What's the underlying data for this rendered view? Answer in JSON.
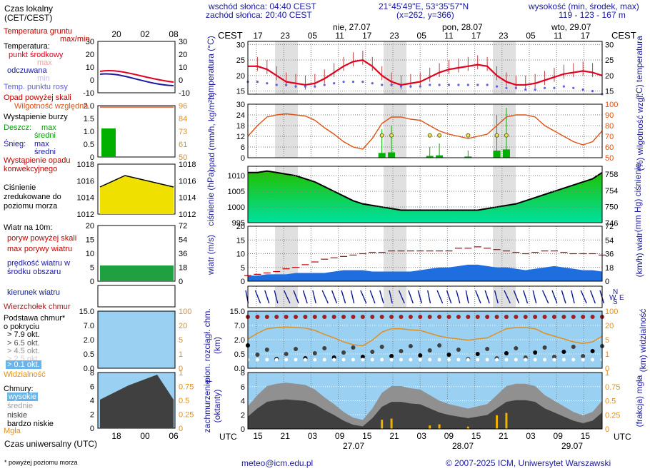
{
  "header": {
    "sunrise": "wschód słońca: 04:40 CEST",
    "sunset": "zachód słońca: 20:40 CEST",
    "coords": "21°45'49\"E, 53°35'57\"N",
    "grid": "(x=262, y=366)",
    "height_label": "wysokość (min, środek, max)",
    "height_values": "119 - 123 - 167 m",
    "local_time_label": "Czas lokalny (CET/CEST)",
    "cest": "CEST",
    "days": [
      "nie, 27.07",
      "pon, 28.07",
      "wto, 29.07"
    ],
    "top_hours": [
      "17",
      "23",
      "05",
      "11",
      "17",
      "23",
      "05",
      "11",
      "17",
      "23",
      "05",
      "11",
      "17"
    ],
    "legend_top_hours": [
      "20",
      "02",
      "08"
    ]
  },
  "footer": {
    "utc": "UTC",
    "bottom_hours": [
      "15",
      "21",
      "03",
      "09",
      "15",
      "21",
      "03",
      "09",
      "15",
      "21",
      "03",
      "09",
      "15"
    ],
    "bottom_dates": [
      "27.07",
      "28.07",
      "29.07"
    ],
    "legend_bottom_hours": [
      "18",
      "00",
      "06"
    ],
    "universal_time_label": "Czas uniwersalny (UTC)",
    "footnote": "* powyżej poziomu morza",
    "email": "meteo@icm.edu.pl",
    "copyright": "© 2007-2025 ICM, Uniwersytet Warszawski"
  },
  "legend": {
    "temp": {
      "soil": "Temperatura gruntu",
      "soil_sub": "max/min",
      "temperature": "Temperatura:",
      "mid": "punkt środkowy",
      "max": "max",
      "min": "min",
      "feels": "odczuwana",
      "dew": "Temp. punktu rosy",
      "ticks": [
        "30",
        "20",
        "10",
        "0",
        "-10"
      ]
    },
    "precip": {
      "over_scale": "Opad powyżej skali",
      "humidity": "Wilgotność względna",
      "storm": "Wystąpienie burzy",
      "rain": "Deszcz:",
      "rain_max": "max",
      "rain_mid": "średni",
      "snow": "Śnieg:",
      "snow_max": "max",
      "snow_mid": "średni",
      "convective": "Wystąpienie opadu konwekcyjnego",
      "ticks_left": [
        "2.0",
        "1.5",
        "1.0",
        "0.5",
        "0"
      ],
      "ticks_right": [
        "96",
        "84",
        "73",
        "61",
        "50"
      ]
    },
    "pressure": {
      "label": "Ciśnienie zredukowane do poziomu morza",
      "ticks": [
        "1018",
        "1016",
        "1014",
        "1012"
      ]
    },
    "wind": {
      "label": "Wiatr na 10m:",
      "gust_over": "poryw powyżej skali",
      "max_gust": "max porywy wiatru",
      "speed": "prędkość wiatru w środku obszaru",
      "ticks_left": [
        "20",
        "15",
        "10",
        "5",
        "0"
      ],
      "ticks_right": [
        "72",
        "54",
        "36",
        "18",
        "0"
      ]
    },
    "direction": {
      "label": "kierunek wiatru"
    },
    "cloudbase": {
      "top": "Wierzchołek chmur",
      "base": "Podstawa chmur* o pokryciu",
      "c79": "> 7.9 okt.",
      "c65": "> 6.5 okt.",
      "c45": "> 4.5 okt.",
      "c25": "> 2.5 okt.",
      "c01": "> 0.1 okt.",
      "vis": "Widzialność",
      "ticks_left": [
        "15.0",
        "7.0",
        "2.0",
        "0.5",
        "0.0"
      ],
      "ticks_right": [
        "100",
        "20",
        "5",
        "1",
        "0"
      ]
    },
    "clouds": {
      "label": "Chmury:",
      "high": "wysokie",
      "mid": "średnie",
      "low": "niskie",
      "vlow": "bardzo niskie",
      "fog": "Mgła",
      "ticks_left": [
        "8",
        "6",
        "4",
        "2",
        "0"
      ],
      "ticks_right": [
        "1",
        "0.75",
        "0.5",
        "0.25",
        "0"
      ]
    }
  },
  "axes": {
    "temp_left": "temperatura (°C)",
    "temp_right": "(°C) temperatura",
    "precip_left": "opad (mm/h, kg/m²h)",
    "precip_right": "(%) wilgotność wzgl.",
    "press_left": "ciśnienie (hPa)",
    "press_right": "(mm Hg) ciśnienie",
    "wind_left": "wiatr (m/s)",
    "wind_right": "(km/h) wiatr",
    "cb_left": "pion. rozciągł. chm. (km)",
    "cb_right": "(km) widzialność",
    "cl_left": "zachmurzenie (oktanty)",
    "cl_right": "(frakcja) mgła",
    "compass": "N S W E",
    "temp_ticks": [
      "30",
      "25",
      "20",
      "15"
    ],
    "precip_ticks_left": [
      "30",
      "24",
      "18",
      "12",
      "6",
      "0"
    ],
    "precip_ticks_right": [
      "100",
      "90",
      "80",
      "70",
      "60",
      "50"
    ],
    "press_ticks_left": [
      "1010",
      "1005",
      "1000",
      "995"
    ],
    "press_ticks_right": [
      "758",
      "754",
      "750",
      "746"
    ],
    "wind_ticks_left": [
      "20",
      "15",
      "10",
      "5",
      "0"
    ],
    "wind_ticks_right": [
      "72",
      "54",
      "36",
      "18",
      "0"
    ],
    "cb_ticks_left": [
      "15.0",
      "7.0",
      "2.0",
      "0.5",
      "0.0"
    ],
    "cb_ticks_right": [
      "100",
      "20",
      "5",
      "1",
      "0"
    ],
    "cl_ticks_left": [
      "8",
      "6",
      "4",
      "2",
      "0"
    ],
    "cl_ticks_right": [
      "1",
      "0.75",
      "0.5",
      "0.25",
      "0"
    ]
  },
  "colors": {
    "temp": "#e00020",
    "dew": "#6060e0",
    "humidity": "#e05010",
    "rain": "#00b000",
    "pressure_line": "#000000",
    "wind": "#1e6ee0",
    "gust": "#c00000",
    "direction": "#0a1890",
    "cloudtop": "#a02020",
    "vis": "#e09020",
    "fog": "#f0b000",
    "sky": "#9ad0f2"
  },
  "chart_data": {
    "type": "line",
    "temperature": [
      23,
      23,
      22,
      20,
      18,
      17.5,
      17,
      17.5,
      19,
      21,
      23,
      24.5,
      25,
      23,
      20,
      18,
      17,
      17.5,
      18,
      19.5,
      21,
      22,
      22.5,
      23,
      23.5,
      23,
      20,
      18,
      17,
      17,
      17.5,
      18.5,
      19.5,
      20.5,
      21,
      21.5,
      21,
      20
    ],
    "dew_point": [
      18,
      18,
      17.5,
      17,
      17,
      16.5,
      16.5,
      16.5,
      17,
      17.5,
      18,
      18,
      18,
      17.5,
      17,
      17,
      16.5,
      16.5,
      16.5,
      17,
      17,
      17,
      17,
      17,
      17,
      17,
      16.5,
      16,
      16,
      15.5,
      15.5,
      16,
      16,
      16.5,
      16,
      15.5,
      15,
      14
    ],
    "humidity": [
      70,
      80,
      88,
      90,
      91,
      90,
      89,
      85,
      78,
      72,
      65,
      60,
      58,
      68,
      82,
      88,
      88,
      86,
      85,
      80,
      75,
      72,
      70,
      68,
      70,
      72,
      80,
      88,
      90,
      90,
      88,
      80,
      75,
      70,
      65,
      62,
      65,
      75
    ],
    "pressure": [
      1011,
      1011,
      1011.5,
      1011,
      1010.5,
      1010,
      1009,
      1008,
      1006.5,
      1005,
      1003.5,
      1002,
      1001,
      1000.5,
      1000,
      999.5,
      999,
      999,
      999,
      999,
      999,
      999,
      999,
      999,
      999,
      999.5,
      1000,
      1000.5,
      1001,
      1002,
      1003,
      1004,
      1005,
      1006,
      1007,
      1008,
      1009,
      1011
    ],
    "wind_speed": [
      2,
      2,
      2.5,
      2.5,
      2.5,
      3,
      3,
      3,
      3,
      3.5,
      4,
      4,
      4,
      3.5,
      3.5,
      3.5,
      3.5,
      3.5,
      4,
      4.5,
      5,
      5,
      5.5,
      6,
      6,
      5.5,
      5,
      5,
      4.5,
      4,
      4.5,
      5,
      5.5,
      5,
      4.5,
      4,
      4,
      3.5
    ],
    "wind_gust": [
      2,
      2.5,
      3,
      3.5,
      4.5,
      5,
      6,
      7,
      8,
      8.5,
      9,
      9.5,
      10,
      10.5,
      10.5,
      11,
      11,
      11,
      11,
      11,
      11,
      11,
      12,
      12,
      12.5,
      12,
      11.5,
      11,
      10.5,
      10,
      10.5,
      11,
      11,
      10.5,
      10,
      10,
      10,
      9.5
    ],
    "precip_bars": [
      0,
      0,
      0,
      0,
      0,
      0,
      0,
      0,
      0,
      0,
      0,
      0,
      0,
      0,
      8,
      9,
      0,
      0,
      0,
      3,
      4,
      0,
      0,
      2,
      0,
      0,
      12,
      14,
      0,
      0,
      0,
      0,
      0,
      0,
      0,
      0,
      0,
      0
    ],
    "precip_ylim": [
      0,
      30
    ],
    "humidity_ylim": [
      50,
      100
    ],
    "temp_ylim": [
      14,
      31
    ],
    "pressure_ylim": [
      995,
      1013
    ],
    "wind_ylim": [
      0,
      20
    ]
  }
}
